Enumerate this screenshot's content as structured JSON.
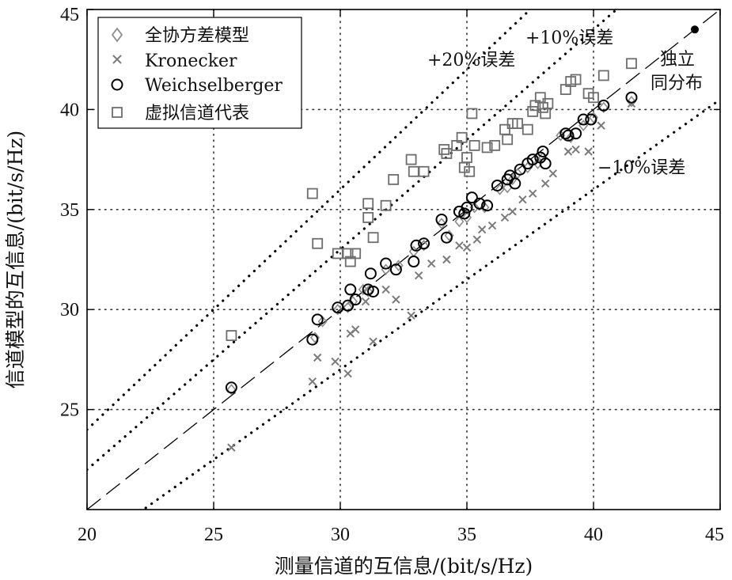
{
  "chart_data": {
    "type": "scatter",
    "title": "",
    "xlabel": "测量信道的互信息/(bit/s/Hz)",
    "ylabel": "信道模型的互信息/(bit/s/Hz)",
    "xlim": [
      20,
      45
    ],
    "ylim": [
      20,
      45
    ],
    "xticks": [
      "20",
      "25",
      "30",
      "35",
      "40",
      "45"
    ],
    "yticks": [
      "25",
      "30",
      "35",
      "40",
      "45"
    ],
    "grid": true,
    "legend_position": "top-left",
    "series": [
      {
        "name": "全协方差模型",
        "marker": "diamond",
        "color": "#8c8c8c",
        "points": [
          [
            25.7,
            26.0
          ],
          [
            29.0,
            28.6
          ],
          [
            29.3,
            29.4
          ],
          [
            29.9,
            30.0
          ],
          [
            30.3,
            30.1
          ],
          [
            30.5,
            30.4
          ],
          [
            30.9,
            31.0
          ],
          [
            31.1,
            30.9
          ],
          [
            31.8,
            32.0
          ],
          [
            32.3,
            32.2
          ],
          [
            32.9,
            32.9
          ],
          [
            33.3,
            33.2
          ],
          [
            34.0,
            34.3
          ],
          [
            34.3,
            33.7
          ],
          [
            34.7,
            34.4
          ],
          [
            35.0,
            34.6
          ],
          [
            35.3,
            35.1
          ],
          [
            35.7,
            35.1
          ],
          [
            36.3,
            36.0
          ],
          [
            36.6,
            36.1
          ],
          [
            36.8,
            36.5
          ],
          [
            37.0,
            36.8
          ],
          [
            37.4,
            37.1
          ],
          [
            37.8,
            37.3
          ],
          [
            38.0,
            37.6
          ],
          [
            38.7,
            38.7
          ],
          [
            39.1,
            38.6
          ],
          [
            39.6,
            39.2
          ],
          [
            40.0,
            39.6
          ],
          [
            40.4,
            40.1
          ],
          [
            41.5,
            40.4
          ]
        ]
      },
      {
        "name": "Kronecker",
        "marker": "x",
        "color": "#7a7a7a",
        "points": [
          [
            25.7,
            23.1
          ],
          [
            28.9,
            26.4
          ],
          [
            29.1,
            27.6
          ],
          [
            29.8,
            27.4
          ],
          [
            30.3,
            26.8
          ],
          [
            30.4,
            28.8
          ],
          [
            30.6,
            29.0
          ],
          [
            31.0,
            30.4
          ],
          [
            31.3,
            28.4
          ],
          [
            31.8,
            31.0
          ],
          [
            32.2,
            30.5
          ],
          [
            32.8,
            29.7
          ],
          [
            33.1,
            31.7
          ],
          [
            33.6,
            32.3
          ],
          [
            34.2,
            32.5
          ],
          [
            34.7,
            33.2
          ],
          [
            35.0,
            33.1
          ],
          [
            35.4,
            33.5
          ],
          [
            35.6,
            34.0
          ],
          [
            36.0,
            34.2
          ],
          [
            36.5,
            34.6
          ],
          [
            36.8,
            34.9
          ],
          [
            37.2,
            35.5
          ],
          [
            37.6,
            35.8
          ],
          [
            38.1,
            36.3
          ],
          [
            38.4,
            36.8
          ],
          [
            39.0,
            37.9
          ],
          [
            39.3,
            38.0
          ],
          [
            39.8,
            37.9
          ],
          [
            40.3,
            39.2
          ],
          [
            41.5,
            40.3
          ]
        ]
      },
      {
        "name": "Weichselberger",
        "marker": "circle",
        "color": "#000000",
        "points": [
          [
            25.7,
            26.1
          ],
          [
            28.9,
            28.5
          ],
          [
            29.1,
            29.5
          ],
          [
            29.9,
            30.1
          ],
          [
            30.3,
            30.2
          ],
          [
            30.4,
            31.0
          ],
          [
            30.6,
            30.5
          ],
          [
            31.1,
            31.0
          ],
          [
            31.2,
            31.8
          ],
          [
            31.3,
            30.9
          ],
          [
            31.8,
            32.3
          ],
          [
            32.2,
            32.0
          ],
          [
            32.9,
            32.4
          ],
          [
            33.0,
            33.2
          ],
          [
            33.3,
            33.3
          ],
          [
            34.0,
            34.5
          ],
          [
            34.2,
            33.6
          ],
          [
            34.7,
            34.9
          ],
          [
            34.9,
            34.8
          ],
          [
            35.0,
            35.1
          ],
          [
            35.2,
            35.6
          ],
          [
            35.5,
            35.3
          ],
          [
            35.8,
            35.2
          ],
          [
            36.2,
            36.2
          ],
          [
            36.6,
            36.5
          ],
          [
            36.7,
            36.7
          ],
          [
            36.9,
            36.3
          ],
          [
            37.1,
            37.0
          ],
          [
            37.4,
            37.3
          ],
          [
            37.6,
            37.5
          ],
          [
            37.9,
            37.6
          ],
          [
            38.0,
            37.9
          ],
          [
            38.1,
            37.3
          ],
          [
            38.9,
            38.8
          ],
          [
            39.0,
            38.7
          ],
          [
            39.3,
            38.8
          ],
          [
            39.6,
            39.5
          ],
          [
            39.9,
            39.5
          ],
          [
            40.4,
            40.2
          ],
          [
            41.5,
            40.6
          ]
        ]
      },
      {
        "name": "虚拟信道代表",
        "marker": "square",
        "color": "#6e6e6e",
        "points": [
          [
            25.7,
            28.7
          ],
          [
            28.9,
            35.8
          ],
          [
            29.1,
            33.3
          ],
          [
            29.9,
            32.8
          ],
          [
            30.3,
            32.8
          ],
          [
            30.4,
            32.4
          ],
          [
            30.6,
            32.8
          ],
          [
            31.1,
            35.3
          ],
          [
            31.1,
            34.6
          ],
          [
            31.3,
            33.6
          ],
          [
            31.8,
            35.2
          ],
          [
            32.1,
            36.5
          ],
          [
            32.8,
            37.5
          ],
          [
            32.9,
            36.9
          ],
          [
            33.3,
            36.9
          ],
          [
            34.1,
            38.0
          ],
          [
            34.2,
            37.8
          ],
          [
            34.6,
            38.2
          ],
          [
            34.8,
            38.6
          ],
          [
            34.9,
            37.1
          ],
          [
            35.0,
            37.6
          ],
          [
            35.1,
            36.9
          ],
          [
            35.2,
            39.8
          ],
          [
            35.3,
            38.2
          ],
          [
            35.8,
            38.1
          ],
          [
            36.1,
            38.2
          ],
          [
            36.5,
            39.0
          ],
          [
            36.6,
            38.5
          ],
          [
            36.8,
            39.3
          ],
          [
            37.0,
            39.3
          ],
          [
            37.4,
            39.0
          ],
          [
            37.6,
            39.9
          ],
          [
            37.7,
            40.2
          ],
          [
            37.9,
            40.6
          ],
          [
            38.0,
            40.1
          ],
          [
            38.1,
            39.8
          ],
          [
            38.2,
            40.3
          ],
          [
            38.9,
            41.0
          ],
          [
            39.1,
            41.4
          ],
          [
            39.3,
            41.5
          ],
          [
            39.8,
            40.8
          ],
          [
            40.0,
            40.6
          ],
          [
            40.4,
            41.7
          ],
          [
            41.5,
            42.3
          ]
        ]
      },
      {
        "name": "独立同分布",
        "marker": "dot",
        "color": "#000000",
        "points": [
          [
            44.0,
            44.0
          ]
        ]
      }
    ],
    "reference_lines": [
      {
        "label": "+20%误差",
        "slope": 1.2,
        "style": "dotted"
      },
      {
        "label": "+10%误差",
        "slope": 1.1,
        "style": "dotted"
      },
      {
        "label": "",
        "slope": 1.0,
        "style": "dashed"
      },
      {
        "label": "-10%误差",
        "slope": 0.9,
        "style": "dotted"
      }
    ],
    "annotations": {
      "plus10": "+10%误差",
      "plus20": "+20%误差",
      "minus10": "−10%误差",
      "iid_line1": "独立",
      "iid_line2": "同分布"
    },
    "legend": [
      "全协方差模型",
      "Kronecker",
      "Weichselberger",
      "虚拟信道代表"
    ]
  }
}
